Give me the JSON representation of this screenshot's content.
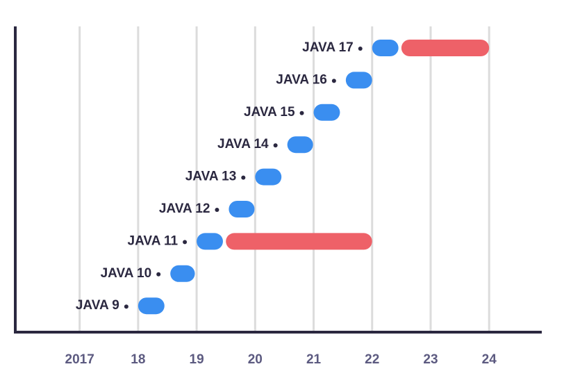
{
  "chart_data": {
    "type": "range-bar",
    "categories": [
      "JAVA 17",
      "JAVA 16",
      "JAVA 15",
      "JAVA 14",
      "JAVA 13",
      "JAVA 12",
      "JAVA 11",
      "JAVA 10",
      "JAVA 9"
    ],
    "series": [
      {
        "color": "#3a8ef0",
        "start": [
          2022.0,
          2021.55,
          2021.0,
          2020.55,
          2020.0,
          2019.55,
          2019.0,
          2018.55,
          2018.0
        ],
        "end": [
          2022.45,
          2022.0,
          2021.45,
          2020.99,
          2020.45,
          2019.99,
          2019.45,
          2018.97,
          2018.45
        ]
      },
      {
        "color": "#ee6168",
        "start": [
          2022.5,
          null,
          null,
          null,
          null,
          null,
          2019.5,
          null,
          null
        ],
        "end": [
          2024.0,
          null,
          null,
          null,
          null,
          null,
          2022.0,
          null,
          null
        ]
      }
    ],
    "xlim": [
      2015.9,
      2024.9
    ],
    "xticks": [
      2017,
      {
        "value": 2018,
        "label": "18"
      },
      {
        "value": 2019,
        "label": "19"
      },
      {
        "value": 2020,
        "label": "20"
      },
      {
        "value": 2021,
        "label": "21"
      },
      {
        "value": 2022,
        "label": "22"
      },
      {
        "value": 2023,
        "label": "23"
      },
      {
        "value": 2024,
        "label": "24"
      }
    ],
    "grid": true
  }
}
